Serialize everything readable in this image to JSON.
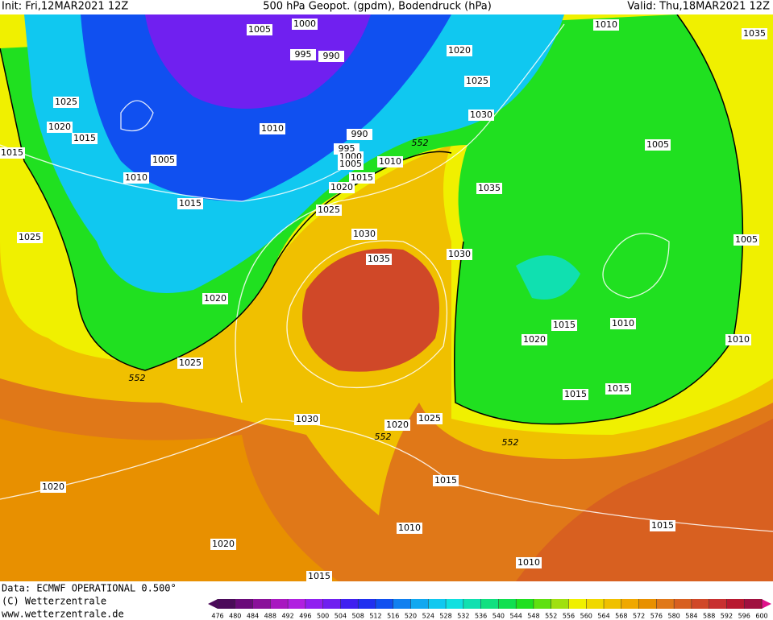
{
  "header": {
    "init": "Init: Fri,12MAR2021 12Z",
    "title": "500 hPa Geopot. (gpdm), Bodendruck (hPa)",
    "valid": "Valid: Thu,18MAR2021 12Z"
  },
  "isobar_labels": [
    "1005",
    "1000",
    "995",
    "990",
    "1020",
    "1010",
    "1035",
    "1025",
    "1020",
    "1015",
    "1025",
    "1030",
    "1010",
    "990",
    "995",
    "1000",
    "1005",
    "1010",
    "1015",
    "1005",
    "1010",
    "1015",
    "1005",
    "1020",
    "1035",
    "1015",
    "1025",
    "1025",
    "1030",
    "1005",
    "1035",
    "1030",
    "1020",
    "1015",
    "1010",
    "1020",
    "1010",
    "1025",
    "1015",
    "1015",
    "1030",
    "1020",
    "1025",
    "1015",
    "1020",
    "1010",
    "1015",
    "1020",
    "1010",
    "1015"
  ],
  "contour_labels": [
    "552",
    "552",
    "552",
    "552"
  ],
  "footer": {
    "data": "Data: ECMWF OPERATIONAL 0.500°",
    "copyright": "(C) Wetterzentrale",
    "url": "www.wetterzentrale.de"
  },
  "colorbar": {
    "ticks": [
      476,
      480,
      484,
      488,
      492,
      496,
      500,
      504,
      508,
      512,
      516,
      520,
      524,
      528,
      532,
      536,
      540,
      544,
      548,
      552,
      556,
      560,
      564,
      568,
      572,
      576,
      580,
      584,
      588,
      592,
      596,
      600
    ],
    "colors": [
      "#4b0a5a",
      "#6a0a7a",
      "#8a109a",
      "#a818c0",
      "#b020e0",
      "#9020f0",
      "#7020f0",
      "#4020f0",
      "#2030f0",
      "#1050f0",
      "#1080f0",
      "#10a8f0",
      "#10c8f0",
      "#10e0e0",
      "#10e0b0",
      "#10e080",
      "#10e050",
      "#20e020",
      "#60e010",
      "#a0e010",
      "#f0f000",
      "#f0d800",
      "#f0c000",
      "#f0a800",
      "#e89000",
      "#e07818",
      "#d86020",
      "#d04828",
      "#c83030",
      "#b81830",
      "#a01040",
      "#e0108a"
    ]
  }
}
